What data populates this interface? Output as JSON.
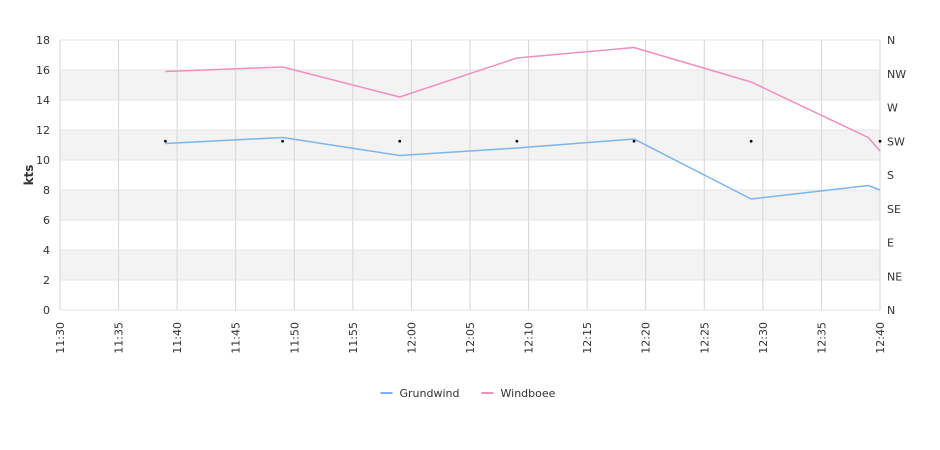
{
  "chart_data": {
    "type": "line",
    "ylabel": "kts",
    "ylim": [
      0,
      18
    ],
    "y_ticks": [
      "0",
      "2",
      "4",
      "6",
      "8",
      "10",
      "12",
      "14",
      "16",
      "18"
    ],
    "x_ticks": [
      "11:30",
      "11:35",
      "11:40",
      "11:45",
      "11:50",
      "11:55",
      "12:00",
      "12:05",
      "12:10",
      "12:15",
      "12:20",
      "12:25",
      "12:30",
      "12:35",
      "12:40"
    ],
    "xlim": [
      "11:30",
      "12:40"
    ],
    "right_axis_labels": [
      "N",
      "NE",
      "E",
      "SE",
      "S",
      "SW",
      "W",
      "NW",
      "N"
    ],
    "alternating_bands": true,
    "grid": true,
    "legend_position": "bottom-center",
    "series": [
      {
        "name": "Grundwind",
        "color": "#7cb5ec",
        "x": [
          "11:39",
          "11:49",
          "11:59",
          "12:09",
          "12:19",
          "12:29",
          "12:39",
          "12:40"
        ],
        "values": [
          11.1,
          11.5,
          10.3,
          10.8,
          11.4,
          7.4,
          8.3,
          8.0
        ]
      },
      {
        "name": "Windboee",
        "color": "#f08ec0",
        "x": [
          "11:39",
          "11:49",
          "11:59",
          "12:09",
          "12:19",
          "12:29",
          "12:39",
          "12:40"
        ],
        "values": [
          15.9,
          16.2,
          14.2,
          16.8,
          17.5,
          15.2,
          11.5,
          10.6
        ]
      }
    ],
    "direction_markers": {
      "x": [
        "11:39",
        "11:49",
        "11:59",
        "12:09",
        "12:19",
        "12:29",
        "12:40"
      ],
      "direction": [
        "SW",
        "SW",
        "SW",
        "SW",
        "SW",
        "SW",
        "SW"
      ]
    }
  }
}
